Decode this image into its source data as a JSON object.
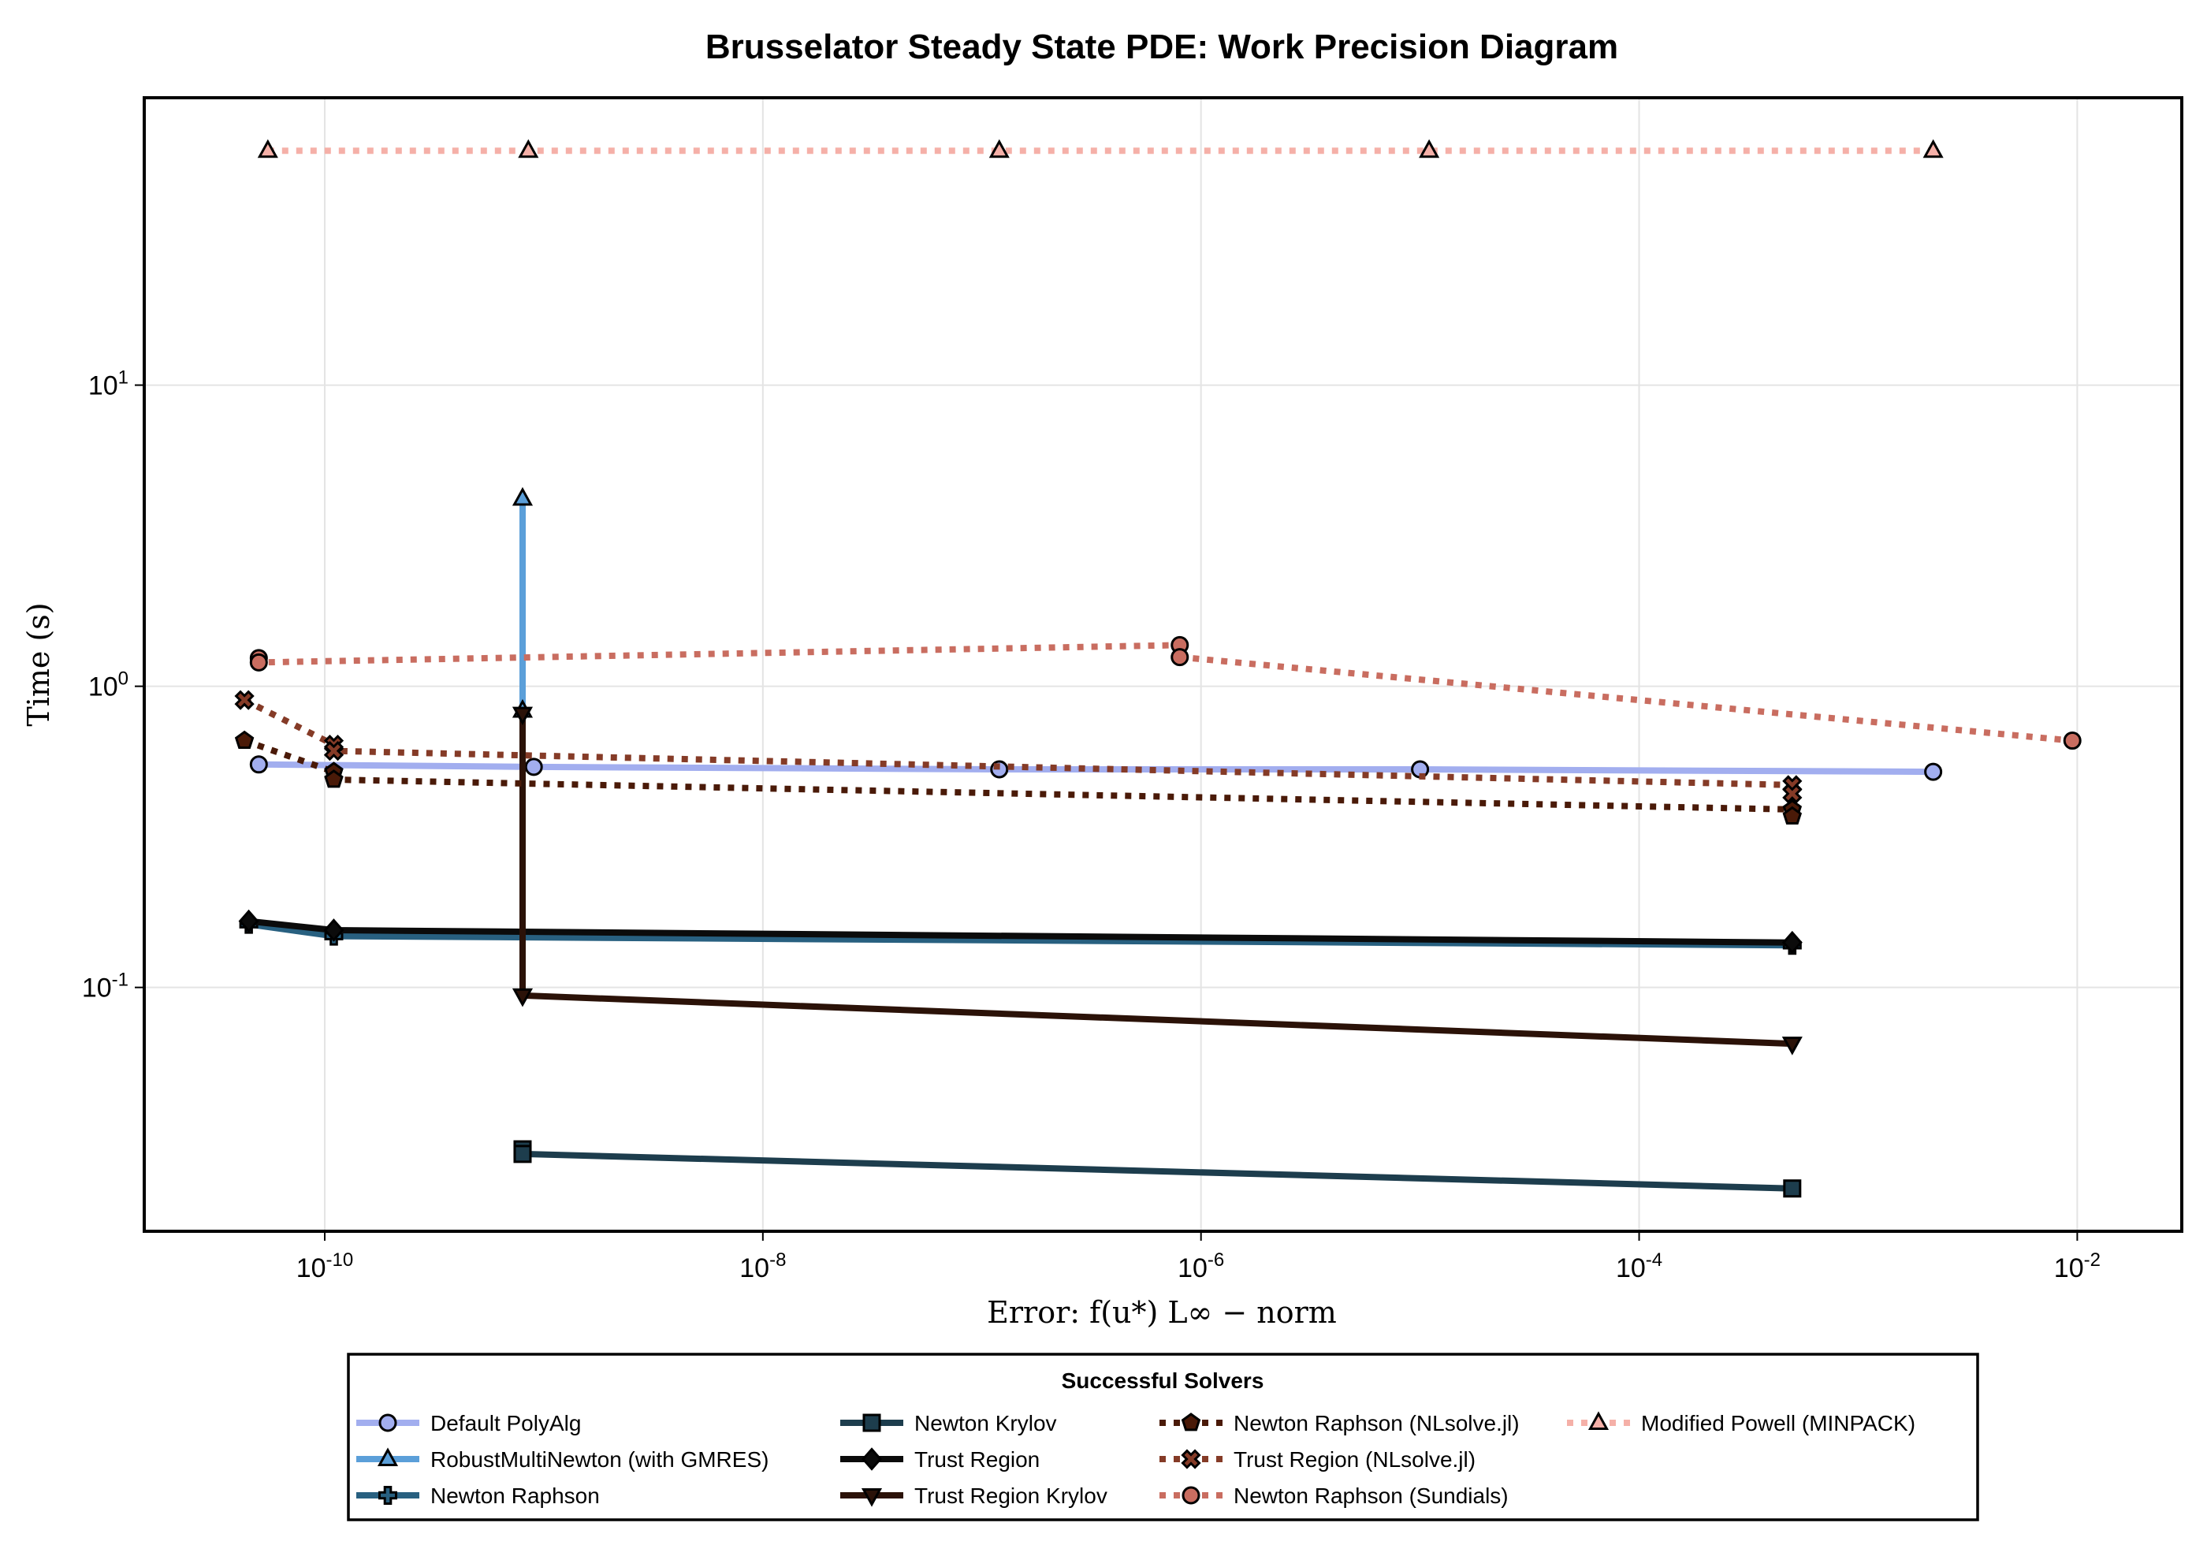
{
  "chart_data": {
    "type": "line",
    "title": "Brusselator Steady State PDE: Work Precision Diagram",
    "xlabel": "Error: f(u*) L∞ − norm",
    "ylabel": "Time (s)",
    "xscale": "log",
    "yscale": "log",
    "xlim": [
      1.5e-11,
      0.03
    ],
    "ylim": [
      0.0155,
      90
    ],
    "xticks": [
      {
        "exp": "-10"
      },
      {
        "exp": "-8"
      },
      {
        "exp": "-6"
      },
      {
        "exp": "-4"
      },
      {
        "exp": "-2"
      }
    ],
    "yticks": [
      {
        "exp": "-1"
      },
      {
        "exp": "0"
      },
      {
        "exp": "1"
      }
    ],
    "grid": true,
    "legend": {
      "title": "Successful Solvers",
      "placement": "bottom",
      "columns": 4
    },
    "series": [
      {
        "name": "Default PolyAlg",
        "color": "#a2aeef",
        "linestyle": "solid",
        "marker": "circle",
        "points": [
          [
            5e-11,
            0.55
          ],
          [
            9e-10,
            0.54
          ],
          [
            1.2e-07,
            0.53
          ],
          [
            1e-05,
            0.53
          ],
          [
            0.0022,
            0.52
          ]
        ]
      },
      {
        "name": "RobustMultiNewton (with GMRES)",
        "color": "#5b9fd9",
        "linestyle": "solid",
        "marker": "triangle-up",
        "points": [
          [
            8e-10,
            4.2
          ],
          [
            8e-10,
            0.83
          ]
        ]
      },
      {
        "name": "Newton Raphson",
        "color": "#286080",
        "linestyle": "solid",
        "marker": "cross",
        "points": [
          [
            4.5e-11,
            0.162
          ],
          [
            1.1e-10,
            0.148
          ],
          [
            0.0005,
            0.138
          ]
        ]
      },
      {
        "name": "Newton Krylov",
        "color": "#1d3d4d",
        "linestyle": "solid",
        "marker": "square",
        "points": [
          [
            8e-10,
            0.029
          ],
          [
            8e-10,
            0.028
          ],
          [
            0.0005,
            0.0215
          ]
        ]
      },
      {
        "name": "Trust Region",
        "color": "#0b0b0b",
        "linestyle": "solid",
        "marker": "diamond",
        "points": [
          [
            4.5e-11,
            0.166
          ],
          [
            1.1e-10,
            0.155
          ],
          [
            0.0005,
            0.141
          ]
        ]
      },
      {
        "name": "Trust Region Krylov",
        "color": "#2b1208",
        "linestyle": "solid",
        "marker": "triangle-down",
        "points": [
          [
            8e-10,
            0.81
          ],
          [
            8e-10,
            0.094
          ],
          [
            0.0005,
            0.065
          ]
        ]
      },
      {
        "name": "Newton Raphson (NLsolve.jl)",
        "color": "#4a1a08",
        "linestyle": "dotted",
        "marker": "pentagon",
        "points": [
          [
            4.3e-11,
            0.66
          ],
          [
            1.1e-10,
            0.52
          ],
          [
            1.1e-10,
            0.49
          ],
          [
            0.0005,
            0.39
          ],
          [
            0.0005,
            0.37
          ]
        ]
      },
      {
        "name": "Trust Region (NLsolve.jl)",
        "color": "#853b27",
        "linestyle": "dotted",
        "marker": "x",
        "points": [
          [
            4.3e-11,
            0.9
          ],
          [
            1.1e-10,
            0.64
          ],
          [
            1.1e-10,
            0.61
          ],
          [
            0.0005,
            0.47
          ],
          [
            0.0005,
            0.44
          ]
        ]
      },
      {
        "name": "Newton Raphson (Sundials)",
        "color": "#c96d60",
        "linestyle": "dotted",
        "marker": "circle",
        "points": [
          [
            5e-11,
            1.24
          ],
          [
            5e-11,
            1.2
          ],
          [
            8e-07,
            1.37
          ],
          [
            8e-07,
            1.25
          ],
          [
            0.0095,
            0.66
          ]
        ]
      },
      {
        "name": "Modified Powell (MINPACK)",
        "color": "#f5b0a8",
        "linestyle": "dotted",
        "marker": "triangle-up",
        "points": [
          [
            5.5e-11,
            60
          ],
          [
            8.5e-10,
            60
          ],
          [
            1.2e-07,
            60
          ],
          [
            1.1e-05,
            60
          ],
          [
            0.0022,
            60
          ]
        ]
      }
    ]
  }
}
